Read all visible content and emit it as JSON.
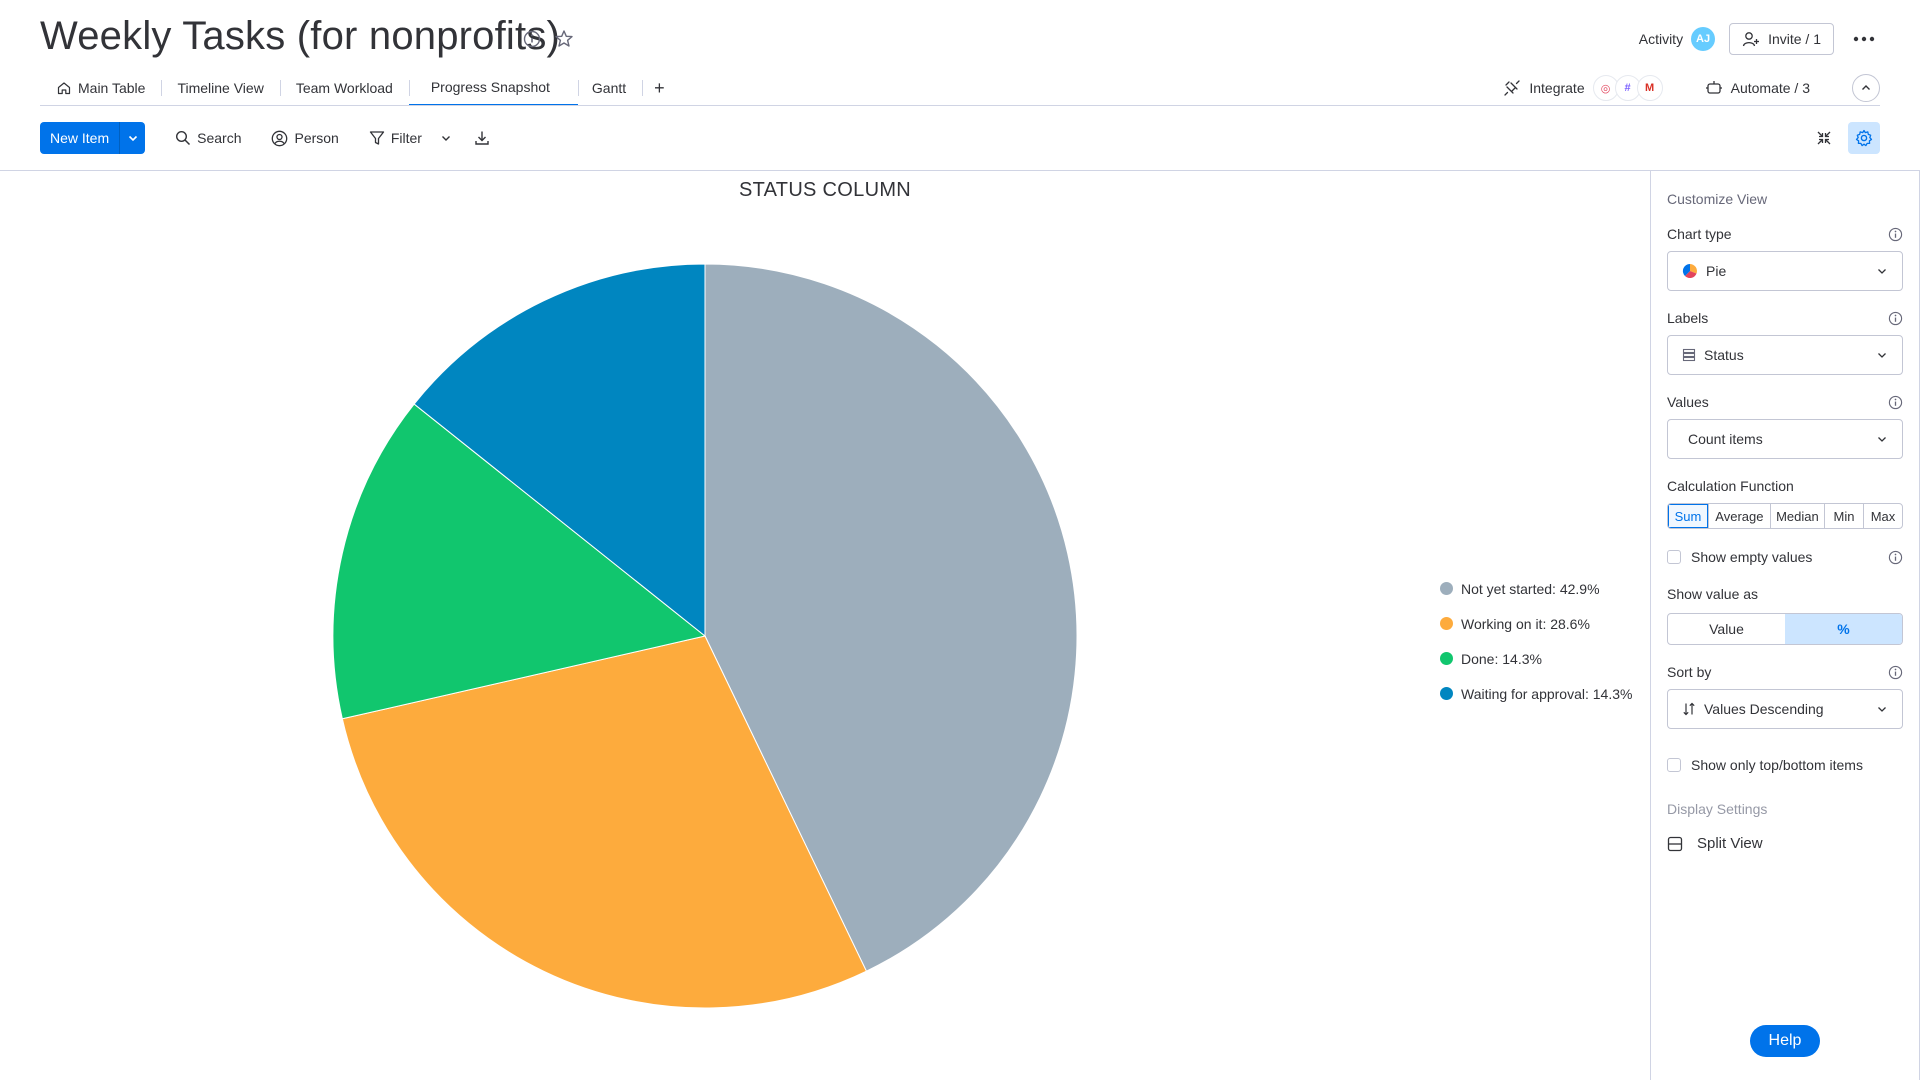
{
  "board": {
    "title": "Weekly Tasks (for nonprofits)"
  },
  "header": {
    "activity_label": "Activity",
    "avatar_initials": "AJ",
    "invite_label": "Invite / 1"
  },
  "tabs": [
    {
      "label": "Main Table",
      "icon": "home-icon",
      "active": false
    },
    {
      "label": "Timeline View",
      "active": false
    },
    {
      "label": "Team Workload",
      "active": false
    },
    {
      "label": "Progress Snapshot",
      "active": true
    },
    {
      "label": "Gantt",
      "active": false
    }
  ],
  "tabs_right": {
    "integrate_label": "Integrate",
    "automate_label": "Automate / 3"
  },
  "toolbar": {
    "new_item_label": "New Item",
    "search_label": "Search",
    "person_label": "Person",
    "filter_label": "Filter"
  },
  "chart_data": {
    "type": "pie",
    "title": "STATUS COLUMN",
    "categories": [
      "Not yet started",
      "Working on it",
      "Done",
      "Waiting for approval"
    ],
    "values": [
      42.9,
      28.6,
      14.3,
      14.3
    ],
    "unit": "%",
    "colors": [
      "#9daebc",
      "#fdab3d",
      "#11c66e",
      "#0086c0"
    ],
    "legend_labels": [
      "Not yet started: 42.9%",
      "Working on it: 28.6%",
      "Done: 14.3%",
      "Waiting for approval: 14.3%"
    ],
    "legend_placement": "right"
  },
  "panel": {
    "heading": "Customize View",
    "chart_type_label": "Chart type",
    "chart_type_value": "Pie",
    "labels_label": "Labels",
    "labels_value": "Status",
    "values_label": "Values",
    "values_value": "Count items",
    "calc_label": "Calculation Function",
    "calc_options": [
      "Sum",
      "Average",
      "Median",
      "Min",
      "Max"
    ],
    "calc_selected": "Sum",
    "show_empty_label": "Show empty values",
    "show_value_as_label": "Show value as",
    "show_value_as_options": [
      "Value",
      "%"
    ],
    "show_value_as_selected": "%",
    "sort_by_label": "Sort by",
    "sort_by_value": "Values Descending",
    "top_bottom_label": "Show only top/bottom items",
    "display_settings_label": "Display Settings",
    "split_view_label": "Split View"
  },
  "help_label": "Help"
}
